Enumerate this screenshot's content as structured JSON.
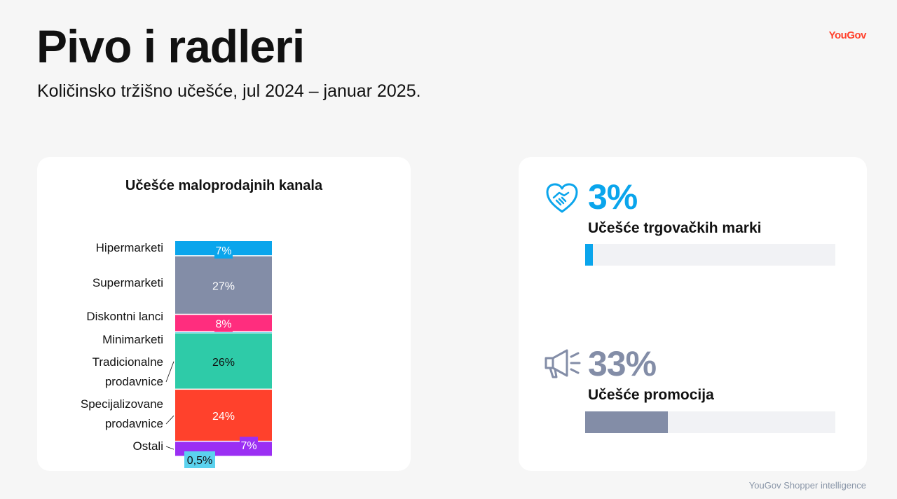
{
  "header": {
    "title": "Pivo i radleri",
    "subtitle": "Količinsko tržišno učešće, jul 2024 – januar 2025.",
    "logo": "YouGov"
  },
  "footer": {
    "text": "YouGov Shopper intelligence"
  },
  "chart_data": {
    "type": "bar",
    "stacked": true,
    "title": "Učešće maloprodajnih kanala",
    "categories": [
      "Hipermarketi",
      "Supermarketi",
      "Diskontni lanci",
      "Minimarketi",
      "Tradicionalne prodavnice",
      "Specijalizovane prodavnice",
      "Ostali"
    ],
    "category_display": [
      [
        "Hipermarketi"
      ],
      [
        "Supermarketi"
      ],
      [
        "Diskontni lanci"
      ],
      [
        "Minimarketi"
      ],
      [
        "Tradicionalne",
        "prodavnice"
      ],
      [
        "Specijalizovane",
        "prodavnice"
      ],
      [
        "Ostali"
      ]
    ],
    "values": [
      7,
      27,
      8,
      0.5,
      26,
      24,
      7
    ],
    "value_labels": [
      "7%",
      "27%",
      "8%",
      "0,5%",
      "26%",
      "24%",
      "7%"
    ],
    "colors": [
      "#0aa5ec",
      "#838da7",
      "#ff2d7e",
      "#5bd2ee",
      "#2ecba8",
      "#ff412c",
      "#9b2ff3"
    ],
    "label_colors": [
      "#ffffff",
      "#ffffff",
      "#ffffff",
      "#111111",
      "#111111",
      "#ffffff",
      "#ffffff"
    ],
    "order_top_to_bottom": [
      0,
      1,
      2,
      3,
      4,
      5,
      6
    ],
    "xlabel": "",
    "ylabel": ""
  },
  "kpis": [
    {
      "icon": "handshake-heart-icon",
      "value": "3%",
      "label": "Učešće trgovačkih marki",
      "fraction": 0.03,
      "color": "#0aa5ec"
    },
    {
      "icon": "megaphone-icon",
      "value": "33%",
      "label": "Učešće promocija",
      "fraction": 0.33,
      "color": "#838da7"
    }
  ]
}
